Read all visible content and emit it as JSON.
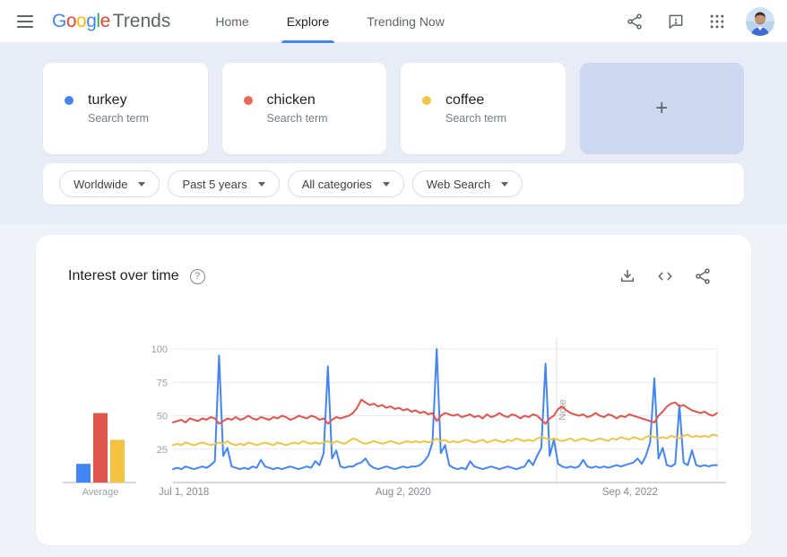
{
  "header": {
    "logo": {
      "letters": [
        {
          "ch": "G",
          "color": "#4285f4"
        },
        {
          "ch": "o",
          "color": "#ea4335"
        },
        {
          "ch": "o",
          "color": "#fbbc05"
        },
        {
          "ch": "g",
          "color": "#4285f4"
        },
        {
          "ch": "l",
          "color": "#34a853"
        },
        {
          "ch": "e",
          "color": "#ea4335"
        }
      ],
      "product": "Trends"
    },
    "nav": [
      {
        "label": "Home",
        "active": false
      },
      {
        "label": "Explore",
        "active": true
      },
      {
        "label": "Trending Now",
        "active": false
      }
    ]
  },
  "terms": [
    {
      "label": "turkey",
      "sublabel": "Search term",
      "color": "#4285f4"
    },
    {
      "label": "chicken",
      "sublabel": "Search term",
      "color": "#ee675c"
    },
    {
      "label": "coffee",
      "sublabel": "Search term",
      "color": "#f5c542"
    }
  ],
  "add_card": {
    "label": "+"
  },
  "filters": {
    "items": [
      {
        "label": "Worldwide"
      },
      {
        "label": "Past 5 years"
      },
      {
        "label": "All categories"
      },
      {
        "label": "Web Search"
      }
    ]
  },
  "chart_card": {
    "title": "Interest over time"
  },
  "chart_data": {
    "type": "line",
    "title": "Interest over time",
    "y_axis": {
      "ticks": [
        25,
        50,
        75,
        100
      ],
      "range": [
        0,
        100
      ],
      "grid": true
    },
    "x_axis": {
      "labels": [
        {
          "text": "Jul 1, 2018",
          "position": 0.02
        },
        {
          "text": "Aug 2, 2020",
          "position": 0.423
        },
        {
          "text": "Sep 4, 2022",
          "position": 0.84
        }
      ]
    },
    "note_line": {
      "label": "Note",
      "position": 0.705
    },
    "averages": {
      "label": "Average",
      "values": [
        {
          "term": "turkey",
          "value": 14
        },
        {
          "term": "chicken",
          "value": 52
        },
        {
          "term": "coffee",
          "value": 32
        }
      ]
    },
    "sampling": "biweekly from Jul 1, 2018 to Jun 2023",
    "series": [
      {
        "name": "turkey",
        "color": "#4285f4",
        "values": [
          10,
          11,
          10,
          12,
          11,
          10,
          11,
          12,
          11,
          13,
          16,
          95,
          20,
          26,
          12,
          11,
          10,
          11,
          10,
          12,
          11,
          17,
          12,
          11,
          10,
          11,
          10,
          11,
          12,
          11,
          10,
          11,
          12,
          11,
          16,
          13,
          22,
          87,
          18,
          24,
          12,
          11,
          12,
          12,
          14,
          15,
          18,
          13,
          11,
          10,
          11,
          12,
          11,
          10,
          11,
          12,
          11,
          12,
          12,
          13,
          16,
          20,
          30,
          100,
          22,
          28,
          13,
          11,
          10,
          11,
          10,
          16,
          12,
          11,
          10,
          11,
          12,
          11,
          10,
          11,
          12,
          11,
          10,
          11,
          12,
          17,
          13,
          20,
          26,
          89,
          20,
          32,
          14,
          12,
          11,
          12,
          11,
          12,
          17,
          12,
          11,
          12,
          11,
          12,
          11,
          12,
          13,
          12,
          13,
          14,
          15,
          18,
          14,
          20,
          30,
          78,
          18,
          26,
          13,
          12,
          14,
          58,
          15,
          13,
          24,
          13,
          12,
          13,
          12,
          13,
          13
        ]
      },
      {
        "name": "chicken",
        "color": "#e2574d",
        "values": [
          45,
          46,
          47,
          45,
          48,
          47,
          46,
          48,
          47,
          49,
          48,
          44,
          46,
          48,
          47,
          49,
          47,
          48,
          50,
          48,
          47,
          49,
          48,
          47,
          49,
          48,
          50,
          49,
          47,
          48,
          50,
          49,
          48,
          50,
          49,
          47,
          48,
          44,
          47,
          49,
          48,
          49,
          50,
          52,
          56,
          62,
          60,
          58,
          59,
          57,
          58,
          56,
          57,
          55,
          56,
          54,
          55,
          53,
          54,
          52,
          53,
          51,
          52,
          46,
          50,
          52,
          51,
          50,
          51,
          49,
          50,
          51,
          49,
          50,
          48,
          51,
          49,
          50,
          52,
          50,
          49,
          51,
          50,
          48,
          50,
          49,
          51,
          50,
          47,
          44,
          48,
          50,
          55,
          57,
          54,
          52,
          51,
          50,
          51,
          49,
          50,
          52,
          50,
          49,
          51,
          50,
          48,
          50,
          49,
          51,
          50,
          49,
          48,
          47,
          46,
          45,
          50,
          53,
          57,
          59,
          60,
          57,
          58,
          56,
          54,
          53,
          52,
          53,
          51,
          50,
          52
        ]
      },
      {
        "name": "coffee",
        "color": "#f1c341",
        "values": [
          28,
          29,
          28,
          30,
          29,
          28,
          29,
          30,
          29,
          28,
          29,
          30,
          29,
          31,
          29,
          28,
          29,
          28,
          30,
          29,
          28,
          29,
          30,
          29,
          28,
          30,
          29,
          28,
          29,
          30,
          29,
          31,
          30,
          29,
          30,
          29,
          30,
          31,
          29,
          31,
          30,
          29,
          31,
          33,
          32,
          30,
          29,
          30,
          31,
          30,
          29,
          30,
          31,
          30,
          29,
          30,
          31,
          30,
          31,
          30,
          31,
          30,
          31,
          33,
          31,
          32,
          30,
          31,
          30,
          31,
          32,
          31,
          30,
          31,
          32,
          30,
          31,
          32,
          31,
          30,
          32,
          31,
          33,
          32,
          31,
          32,
          31,
          33,
          34,
          33,
          32,
          33,
          32,
          31,
          32,
          33,
          31,
          32,
          33,
          32,
          31,
          32,
          33,
          32,
          31,
          33,
          32,
          34,
          33,
          32,
          34,
          33,
          32,
          34,
          35,
          34,
          33,
          34,
          33,
          35,
          34,
          33,
          35,
          36,
          34,
          35,
          34,
          35,
          34,
          36,
          35
        ]
      }
    ]
  }
}
